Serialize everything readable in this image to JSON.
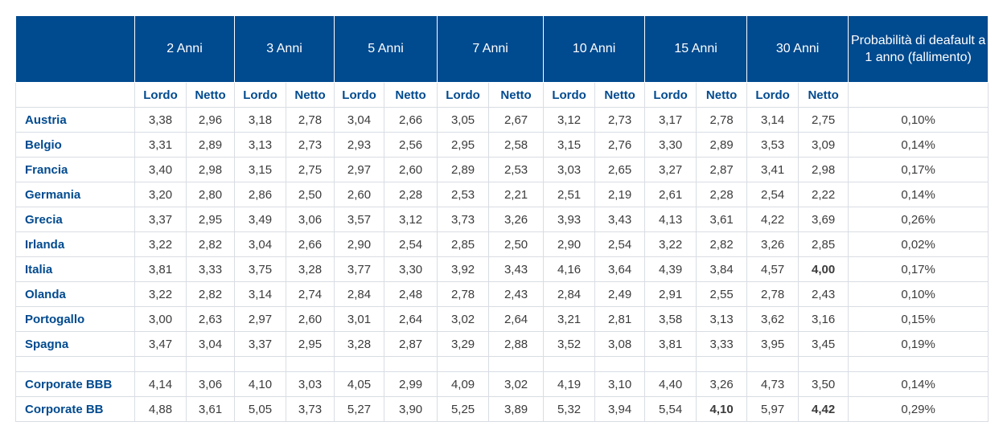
{
  "periods": [
    "2 Anni",
    "3 Anni",
    "5 Anni",
    "7 Anni",
    "10 Anni",
    "15 Anni",
    "30 Anni"
  ],
  "prob_header": "Probabilità di deafault a 1 anno (fallimento)",
  "sub_headers": {
    "lordo": "Lordo",
    "netto": "Netto"
  },
  "rows": [
    {
      "name": "Austria",
      "values": [
        "3,38",
        "2,96",
        "3,18",
        "2,78",
        "3,04",
        "2,66",
        "3,05",
        "2,67",
        "3,12",
        "2,73",
        "3,17",
        "2,78",
        "3,14",
        "2,75"
      ],
      "prob": "0,10%"
    },
    {
      "name": "Belgio",
      "values": [
        "3,31",
        "2,89",
        "3,13",
        "2,73",
        "2,93",
        "2,56",
        "2,95",
        "2,58",
        "3,15",
        "2,76",
        "3,30",
        "2,89",
        "3,53",
        "3,09"
      ],
      "prob": "0,14%"
    },
    {
      "name": "Francia",
      "values": [
        "3,40",
        "2,98",
        "3,15",
        "2,75",
        "2,97",
        "2,60",
        "2,89",
        "2,53",
        "3,03",
        "2,65",
        "3,27",
        "2,87",
        "3,41",
        "2,98"
      ],
      "prob": "0,17%"
    },
    {
      "name": "Germania",
      "values": [
        "3,20",
        "2,80",
        "2,86",
        "2,50",
        "2,60",
        "2,28",
        "2,53",
        "2,21",
        "2,51",
        "2,19",
        "2,61",
        "2,28",
        "2,54",
        "2,22"
      ],
      "prob": "0,14%"
    },
    {
      "name": "Grecia",
      "values": [
        "3,37",
        "2,95",
        "3,49",
        "3,06",
        "3,57",
        "3,12",
        "3,73",
        "3,26",
        "3,93",
        "3,43",
        "4,13",
        "3,61",
        "4,22",
        "3,69"
      ],
      "prob": "0,26%"
    },
    {
      "name": "Irlanda",
      "values": [
        "3,22",
        "2,82",
        "3,04",
        "2,66",
        "2,90",
        "2,54",
        "2,85",
        "2,50",
        "2,90",
        "2,54",
        "3,22",
        "2,82",
        "3,26",
        "2,85"
      ],
      "prob": "0,02%"
    },
    {
      "name": "Italia",
      "values": [
        "3,81",
        "3,33",
        "3,75",
        "3,28",
        "3,77",
        "3,30",
        "3,92",
        "3,43",
        "4,16",
        "3,64",
        "4,39",
        "3,84",
        "4,57",
        "4,00"
      ],
      "prob": "0,17%",
      "green": [
        13
      ]
    },
    {
      "name": "Olanda",
      "values": [
        "3,22",
        "2,82",
        "3,14",
        "2,74",
        "2,84",
        "2,48",
        "2,78",
        "2,43",
        "2,84",
        "2,49",
        "2,91",
        "2,55",
        "2,78",
        "2,43"
      ],
      "prob": "0,10%"
    },
    {
      "name": "Portogallo",
      "values": [
        "3,00",
        "2,63",
        "2,97",
        "2,60",
        "3,01",
        "2,64",
        "3,02",
        "2,64",
        "3,21",
        "2,81",
        "3,58",
        "3,13",
        "3,62",
        "3,16"
      ],
      "prob": "0,15%"
    },
    {
      "name": "Spagna",
      "values": [
        "3,47",
        "3,04",
        "3,37",
        "2,95",
        "3,28",
        "2,87",
        "3,29",
        "2,88",
        "3,52",
        "3,08",
        "3,81",
        "3,33",
        "3,95",
        "3,45"
      ],
      "prob": "0,19%"
    },
    {
      "spacer": true
    },
    {
      "name": "Corporate BBB",
      "values": [
        "4,14",
        "3,06",
        "4,10",
        "3,03",
        "4,05",
        "2,99",
        "4,09",
        "3,02",
        "4,19",
        "3,10",
        "4,40",
        "3,26",
        "4,73",
        "3,50"
      ],
      "prob": "0,14%"
    },
    {
      "name": "Corporate BB",
      "values": [
        "4,88",
        "3,61",
        "5,05",
        "3,73",
        "5,27",
        "3,90",
        "5,25",
        "3,89",
        "5,32",
        "3,94",
        "5,54",
        "4,10",
        "5,97",
        "4,42"
      ],
      "prob": "0,29%",
      "green": [
        11,
        13
      ]
    }
  ],
  "colors": {
    "header_bg": "#004a8f",
    "accent_text": "#004a8f",
    "highlight": "#2ec27e"
  }
}
